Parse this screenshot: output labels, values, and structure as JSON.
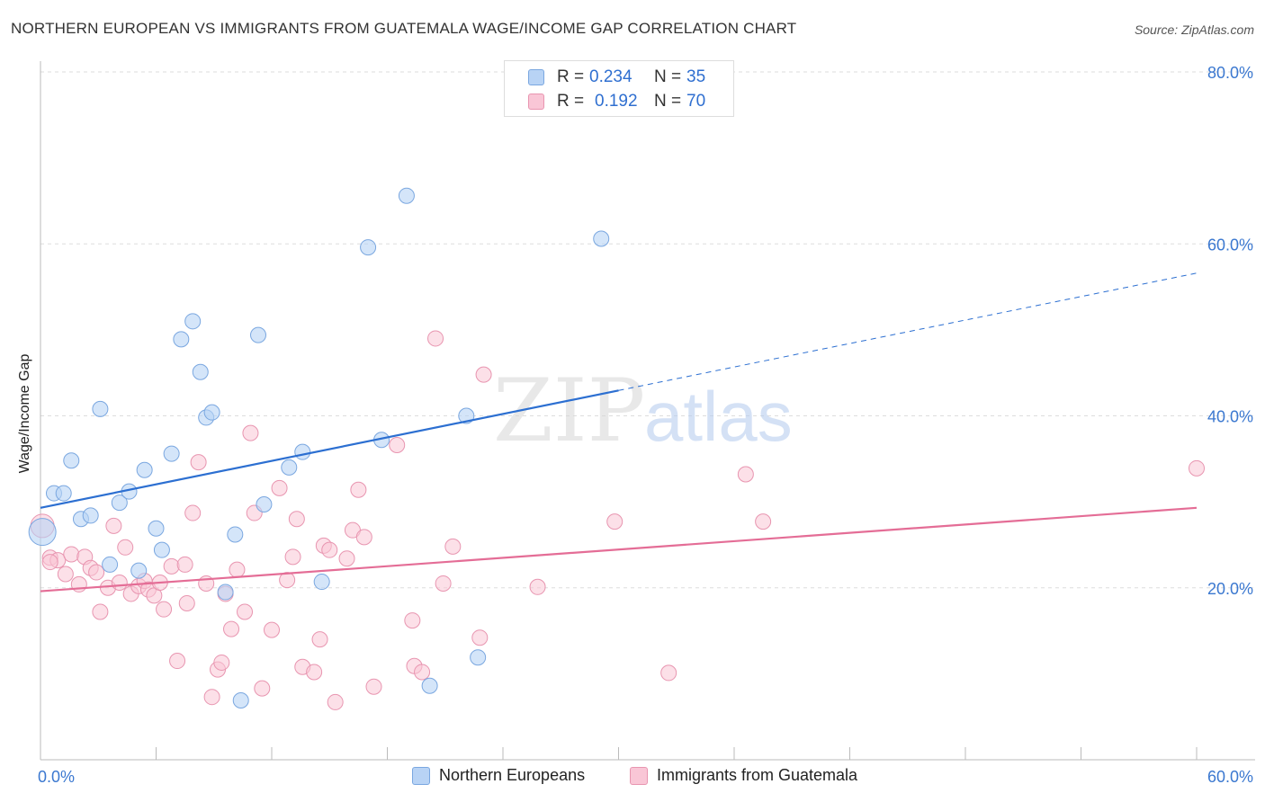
{
  "title": "NORTHERN EUROPEAN VS IMMIGRANTS FROM GUATEMALA WAGE/INCOME GAP CORRELATION CHART",
  "source": "Source: ZipAtlas.com",
  "watermark": {
    "zip": "ZIP",
    "atlas": "atlas"
  },
  "legend": {
    "r_label": "R =",
    "n_label": "N =",
    "rows": [
      {
        "r": "0.234",
        "n": "35"
      },
      {
        "r": "0.192",
        "n": "70"
      }
    ]
  },
  "colors": {
    "blue_fill": "#b8d3f5",
    "blue_stroke": "#7aa7e0",
    "blue_line": "#2c6fd1",
    "pink_fill": "#f9c6d6",
    "pink_stroke": "#e895b0",
    "pink_line": "#e46d96",
    "tick_text": "#3b78d0"
  },
  "chart_data": {
    "type": "scatter",
    "title": "NORTHERN EUROPEAN VS IMMIGRANTS FROM GUATEMALA WAGE/INCOME GAP CORRELATION CHART",
    "xlabel": "",
    "ylabel": "Wage/Income Gap",
    "xlim": [
      0,
      60
    ],
    "ylim": [
      0,
      80
    ],
    "x_tick_labels": [
      "0.0%",
      "60.0%"
    ],
    "y_ticks": [
      20,
      40,
      60,
      80
    ],
    "y_tick_labels": [
      "20.0%",
      "40.0%",
      "60.0%",
      "80.0%"
    ],
    "grid": true,
    "legend_position": "top-center",
    "series": [
      {
        "name": "Northern Europeans",
        "points": [
          [
            0.1,
            26.5
          ],
          [
            0.7,
            31.0
          ],
          [
            1.2,
            31.0
          ],
          [
            1.6,
            34.8
          ],
          [
            2.1,
            28.0
          ],
          [
            2.6,
            28.4
          ],
          [
            3.1,
            40.8
          ],
          [
            3.6,
            22.7
          ],
          [
            4.1,
            29.9
          ],
          [
            4.6,
            31.2
          ],
          [
            5.1,
            22.0
          ],
          [
            5.4,
            33.7
          ],
          [
            6.0,
            26.9
          ],
          [
            6.3,
            24.4
          ],
          [
            6.8,
            35.6
          ],
          [
            7.3,
            48.9
          ],
          [
            7.9,
            51.0
          ],
          [
            8.3,
            45.1
          ],
          [
            8.6,
            39.8
          ],
          [
            8.9,
            40.4
          ],
          [
            9.6,
            19.5
          ],
          [
            10.1,
            26.2
          ],
          [
            10.4,
            6.9
          ],
          [
            11.3,
            49.4
          ],
          [
            11.6,
            29.7
          ],
          [
            12.9,
            34.0
          ],
          [
            13.6,
            35.8
          ],
          [
            14.6,
            20.7
          ],
          [
            17.0,
            59.6
          ],
          [
            17.7,
            37.2
          ],
          [
            19.0,
            65.6
          ],
          [
            20.2,
            8.6
          ],
          [
            22.1,
            40.0
          ],
          [
            22.7,
            11.9
          ],
          [
            29.1,
            60.6
          ]
        ],
        "trend": {
          "x_start": 0,
          "y_start": 29.3,
          "x_solid_end": 30.0,
          "x_end": 60,
          "y_end": 56.6
        }
      },
      {
        "name": "Immigrants from Guatemala",
        "points": [
          [
            0.1,
            27.2
          ],
          [
            0.5,
            23.5
          ],
          [
            0.9,
            23.2
          ],
          [
            1.3,
            21.6
          ],
          [
            1.6,
            23.9
          ],
          [
            2.0,
            20.4
          ],
          [
            2.3,
            23.6
          ],
          [
            2.6,
            22.3
          ],
          [
            2.9,
            21.8
          ],
          [
            3.1,
            17.2
          ],
          [
            3.5,
            20.0
          ],
          [
            3.8,
            27.2
          ],
          [
            4.1,
            20.6
          ],
          [
            4.4,
            24.7
          ],
          [
            4.7,
            19.3
          ],
          [
            5.1,
            20.2
          ],
          [
            5.4,
            20.8
          ],
          [
            5.6,
            19.8
          ],
          [
            5.9,
            19.1
          ],
          [
            6.2,
            20.6
          ],
          [
            6.4,
            17.5
          ],
          [
            6.8,
            22.5
          ],
          [
            7.1,
            11.5
          ],
          [
            7.5,
            22.7
          ],
          [
            7.6,
            18.2
          ],
          [
            7.9,
            28.7
          ],
          [
            8.2,
            34.6
          ],
          [
            8.6,
            20.5
          ],
          [
            8.9,
            7.3
          ],
          [
            9.2,
            10.5
          ],
          [
            9.4,
            11.3
          ],
          [
            9.6,
            19.3
          ],
          [
            9.9,
            15.2
          ],
          [
            10.2,
            22.1
          ],
          [
            10.6,
            17.2
          ],
          [
            10.9,
            38.0
          ],
          [
            11.1,
            28.7
          ],
          [
            11.5,
            8.3
          ],
          [
            12.0,
            15.1
          ],
          [
            12.4,
            31.6
          ],
          [
            12.8,
            20.9
          ],
          [
            13.1,
            23.6
          ],
          [
            13.3,
            28.0
          ],
          [
            13.6,
            10.8
          ],
          [
            14.2,
            10.2
          ],
          [
            14.5,
            14.0
          ],
          [
            14.7,
            24.9
          ],
          [
            15.0,
            24.4
          ],
          [
            15.3,
            6.7
          ],
          [
            15.9,
            23.4
          ],
          [
            16.2,
            26.7
          ],
          [
            16.5,
            31.4
          ],
          [
            16.8,
            25.9
          ],
          [
            17.3,
            8.5
          ],
          [
            18.5,
            36.6
          ],
          [
            19.3,
            16.2
          ],
          [
            19.4,
            10.9
          ],
          [
            19.8,
            10.2
          ],
          [
            20.5,
            49.0
          ],
          [
            20.9,
            20.5
          ],
          [
            21.4,
            24.8
          ],
          [
            22.8,
            14.2
          ],
          [
            23.0,
            44.8
          ],
          [
            25.8,
            20.1
          ],
          [
            29.8,
            27.7
          ],
          [
            32.6,
            10.1
          ],
          [
            36.6,
            33.2
          ],
          [
            37.5,
            27.7
          ],
          [
            60.0,
            33.9
          ],
          [
            0.5,
            23.0
          ]
        ],
        "trend": {
          "x_start": 0,
          "y_start": 19.6,
          "x_end": 60,
          "y_end": 29.3
        }
      }
    ]
  }
}
